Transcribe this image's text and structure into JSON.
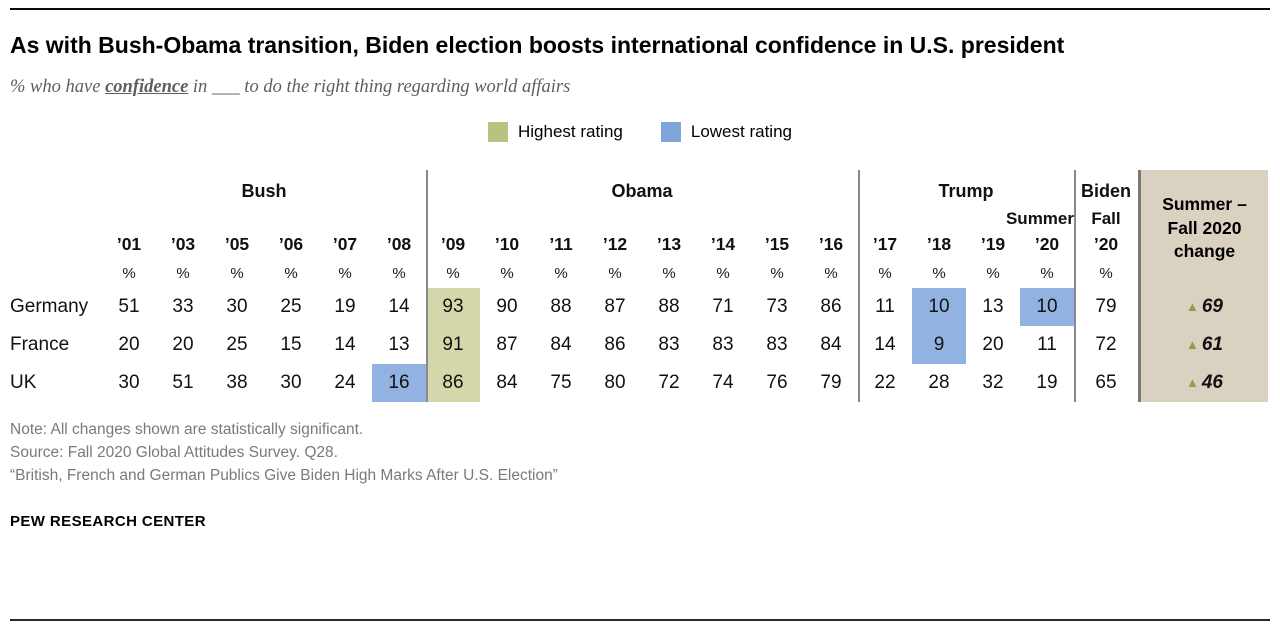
{
  "page": {
    "title": "As with Bush-Obama transition, Biden election boosts international confidence in U.S. president",
    "subtitle": {
      "prefix": "% who have ",
      "emphasis": "confidence",
      "suffix": " in ___ to do the right thing regarding world affairs"
    },
    "notes": [
      "Note: All changes shown are statistically significant.",
      "Source: Fall 2020 Global Attitudes Survey. Q28.",
      "“British, French and German Publics Give Biden High Marks After U.S. Election”"
    ],
    "footer": "PEW RESEARCH CENTER"
  },
  "legend": [
    {
      "label": "Highest rating",
      "color": "#b9c27e"
    },
    {
      "label": "Lowest rating",
      "color": "#80a5d9"
    }
  ],
  "chart_data": {
    "type": "table",
    "title": "As with Bush-Obama transition, Biden election boosts international confidence in U.S. president",
    "subtitle": "% who have confidence in ___ to do the right thing regarding world affairs",
    "unit": "%",
    "groups": [
      {
        "name": "Bush",
        "span": 6
      },
      {
        "name": "Obama",
        "span": 8
      },
      {
        "name": "Trump",
        "span": 4
      },
      {
        "name": "Biden",
        "span": 1
      }
    ],
    "years": [
      "’01",
      "’03",
      "’05",
      "’06",
      "’07",
      "’08",
      "’09",
      "’10",
      "’11",
      "’12",
      "’13",
      "’14",
      "’15",
      "’16",
      "’17",
      "’18",
      "’19",
      "’20",
      "’20"
    ],
    "sub_labels": [
      {
        "text": "Summer",
        "above_year_index": 17
      },
      {
        "text": "Fall",
        "above_year_index": 18
      }
    ],
    "rows": [
      {
        "label": "Germany",
        "values": [
          51,
          33,
          30,
          25,
          19,
          14,
          93,
          90,
          88,
          87,
          88,
          71,
          73,
          86,
          11,
          10,
          13,
          10,
          79
        ],
        "highlight": {
          "6": "highest",
          "15": "lowest",
          "17": "lowest"
        },
        "change": {
          "direction": "up",
          "value": "69"
        }
      },
      {
        "label": "France",
        "values": [
          20,
          20,
          25,
          15,
          14,
          13,
          91,
          87,
          84,
          86,
          83,
          83,
          83,
          84,
          14,
          9,
          20,
          11,
          72
        ],
        "highlight": {
          "6": "highest",
          "15": "lowest"
        },
        "change": {
          "direction": "up",
          "value": "61"
        }
      },
      {
        "label": "UK",
        "values": [
          30,
          51,
          38,
          30,
          24,
          16,
          86,
          84,
          75,
          80,
          72,
          74,
          76,
          79,
          22,
          28,
          32,
          19,
          65
        ],
        "highlight": {
          "5": "lowest",
          "6": "highest"
        },
        "change": {
          "direction": "up",
          "value": "46"
        }
      }
    ],
    "change_header": "Summer –\nFall 2020\nchange",
    "change_marker": "▲",
    "colors": {
      "highest_cell": "#d6d6ab",
      "lowest_cell": "#92b3e1",
      "legend_highest": "#b9c27e",
      "legend_lowest": "#80a5d9",
      "change_box_bg": "#d9d2c0",
      "change_box_border": "#7b7b74",
      "divider": "#8a8a8a",
      "triangle": "#8e9c50"
    }
  }
}
